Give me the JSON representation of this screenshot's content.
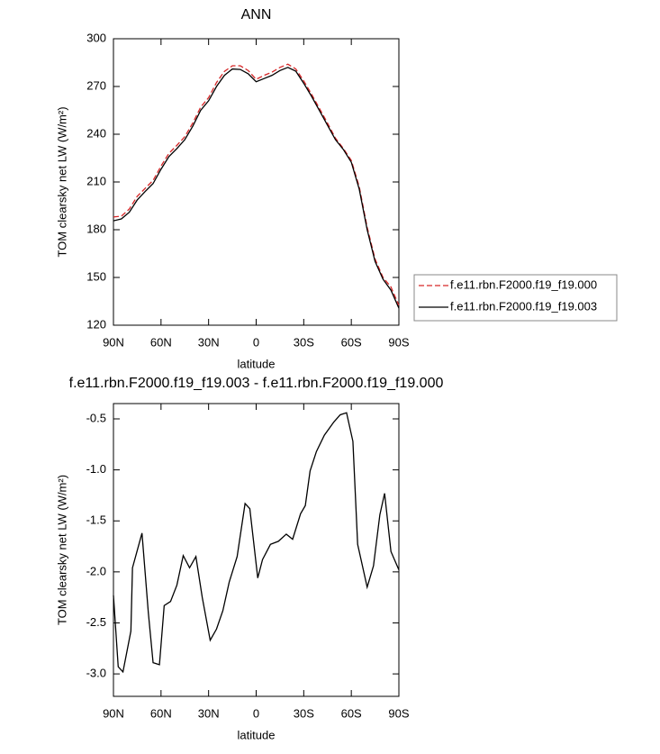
{
  "chart_data": [
    {
      "type": "line",
      "title": "ANN",
      "xlabel": "latitude",
      "ylabel": "TOM clearsky net LW (W/m²)",
      "x": [
        90,
        85,
        80,
        75,
        70,
        65,
        60,
        55,
        50,
        45,
        40,
        35,
        30,
        25,
        20,
        15,
        10,
        5,
        0,
        -5,
        -10,
        -15,
        -20,
        -25,
        -30,
        -35,
        -40,
        -45,
        -50,
        -55,
        -60,
        -65,
        -70,
        -75,
        -80,
        -85,
        -90
      ],
      "series": [
        {
          "name": "f.e11.rbn.F2000.f19_f19.000",
          "color": "#d62728",
          "dashed": true,
          "values": [
            188,
            188.5,
            193,
            201,
            206,
            211,
            220,
            228,
            233,
            238.5,
            247,
            257,
            263,
            272.5,
            279.5,
            283,
            283,
            280,
            274.5,
            277,
            279,
            282,
            284,
            281,
            273.5,
            265,
            256,
            247,
            237.5,
            231,
            223.5,
            207,
            181.5,
            161.5,
            150,
            144,
            132.5
          ]
        },
        {
          "name": "f.e11.rbn.F2000.f19_f19.003",
          "color": "#000000",
          "dashed": false,
          "values": [
            185.6,
            186.8,
            191,
            198.7,
            204,
            209,
            218,
            226,
            231,
            236.6,
            245,
            255,
            261,
            270,
            277,
            281,
            280.7,
            278,
            273,
            275,
            277,
            280,
            282,
            279.6,
            272,
            263.7,
            254.7,
            245.6,
            236.6,
            230.4,
            222.4,
            205.5,
            180,
            160,
            148.9,
            142,
            130.7
          ]
        }
      ],
      "xlim": [
        90,
        -90
      ],
      "xticks": [
        {
          "value": 90,
          "label": "90N"
        },
        {
          "value": 60,
          "label": "60N"
        },
        {
          "value": 30,
          "label": "30N"
        },
        0,
        {
          "value": -30,
          "label": "30S"
        },
        {
          "value": -60,
          "label": "60S"
        },
        {
          "value": -90,
          "label": "90S"
        }
      ],
      "ylim": [
        120,
        300
      ],
      "yticks": [
        120,
        150,
        180,
        210,
        240,
        270,
        300
      ],
      "legend": "right"
    },
    {
      "type": "line",
      "title": "f.e11.rbn.F2000.f19_f19.003 - f.e11.rbn.F2000.f19_f19.000",
      "xlabel": "latitude",
      "ylabel": "TOM clearsky net LW (W/m²)",
      "x": [
        90,
        87,
        84,
        79,
        78,
        72,
        68,
        65,
        61,
        58,
        54,
        50,
        46,
        42,
        38,
        34,
        29,
        25,
        21,
        17,
        12,
        7,
        4,
        -1,
        -4,
        -9,
        -14,
        -19,
        -23,
        -28,
        -31,
        -34,
        -38,
        -43,
        -49,
        -53,
        -57,
        -61,
        -64,
        -70,
        -74,
        -78,
        -81,
        -85,
        -90
      ],
      "series": [
        {
          "color": "#000000",
          "dashed": false,
          "values": [
            -2.23,
            -2.93,
            -2.98,
            -2.58,
            -1.96,
            -1.62,
            -2.4,
            -2.89,
            -2.91,
            -2.33,
            -2.29,
            -2.13,
            -1.84,
            -1.96,
            -1.85,
            -2.25,
            -2.67,
            -2.56,
            -2.38,
            -2.1,
            -1.85,
            -1.33,
            -1.38,
            -2.06,
            -1.88,
            -1.73,
            -1.7,
            -1.63,
            -1.68,
            -1.43,
            -1.35,
            -1.01,
            -0.82,
            -0.66,
            -0.53,
            -0.46,
            -0.44,
            -0.72,
            -1.73,
            -2.15,
            -1.94,
            -1.44,
            -1.23,
            -1.8,
            -1.98
          ]
        }
      ],
      "xlim": [
        90,
        -90
      ],
      "xticks": [
        {
          "value": 90,
          "label": "90N"
        },
        {
          "value": 60,
          "label": "60N"
        },
        {
          "value": 30,
          "label": "30N"
        },
        0,
        {
          "value": -30,
          "label": "30S"
        },
        {
          "value": -60,
          "label": "60S"
        },
        {
          "value": -90,
          "label": "90S"
        }
      ],
      "ylim": [
        -3.22,
        -0.35
      ],
      "yticks": [
        {
          "value": -3,
          "label": "-3.0"
        },
        -2.5,
        {
          "value": -2,
          "label": "-2.0"
        },
        -1.5,
        {
          "value": -1,
          "label": "-1.0"
        },
        -0.5
      ]
    }
  ]
}
